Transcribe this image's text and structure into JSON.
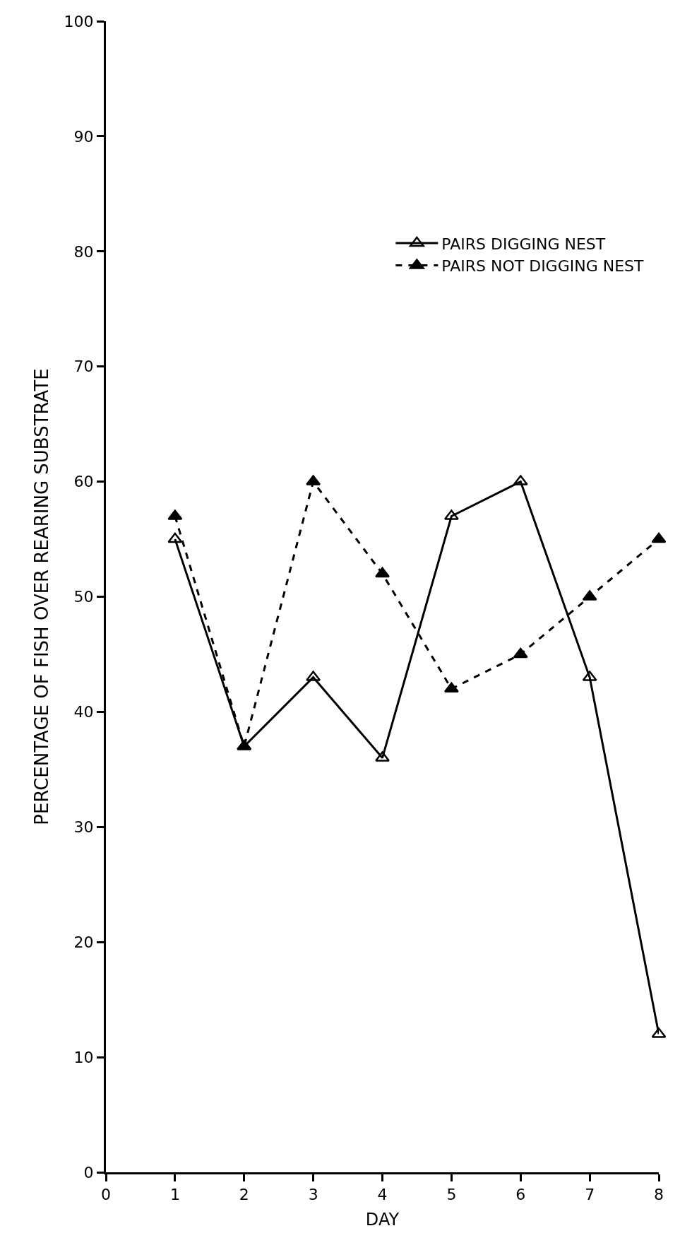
{
  "chart_data": {
    "type": "line",
    "xlabel": "DAY",
    "ylabel": "PERCENTAGE OF FISH OVER REARING SUBSTRATE",
    "x": [
      1,
      2,
      3,
      4,
      5,
      6,
      7,
      8
    ],
    "series": [
      {
        "name": "PAIRS DIGGING NEST",
        "color": "#000000",
        "values": [
          55,
          37,
          43,
          36,
          57,
          60,
          43,
          12
        ],
        "marker": "triangle-open",
        "line_style": "solid"
      },
      {
        "name": "PAIRS NOT DIGGING NEST",
        "color": "#000000",
        "values": [
          57,
          37,
          60,
          52,
          42,
          45,
          50,
          55
        ],
        "marker": "triangle",
        "line_style": "dashed"
      }
    ],
    "xlim": [
      0,
      8
    ],
    "xticks": [
      0,
      1,
      2,
      3,
      4,
      5,
      6,
      7,
      8
    ],
    "ylim": [
      0,
      100
    ],
    "yticks": [
      0,
      10,
      20,
      30,
      40,
      50,
      60,
      70,
      80,
      90,
      100
    ],
    "legend": "top right"
  }
}
